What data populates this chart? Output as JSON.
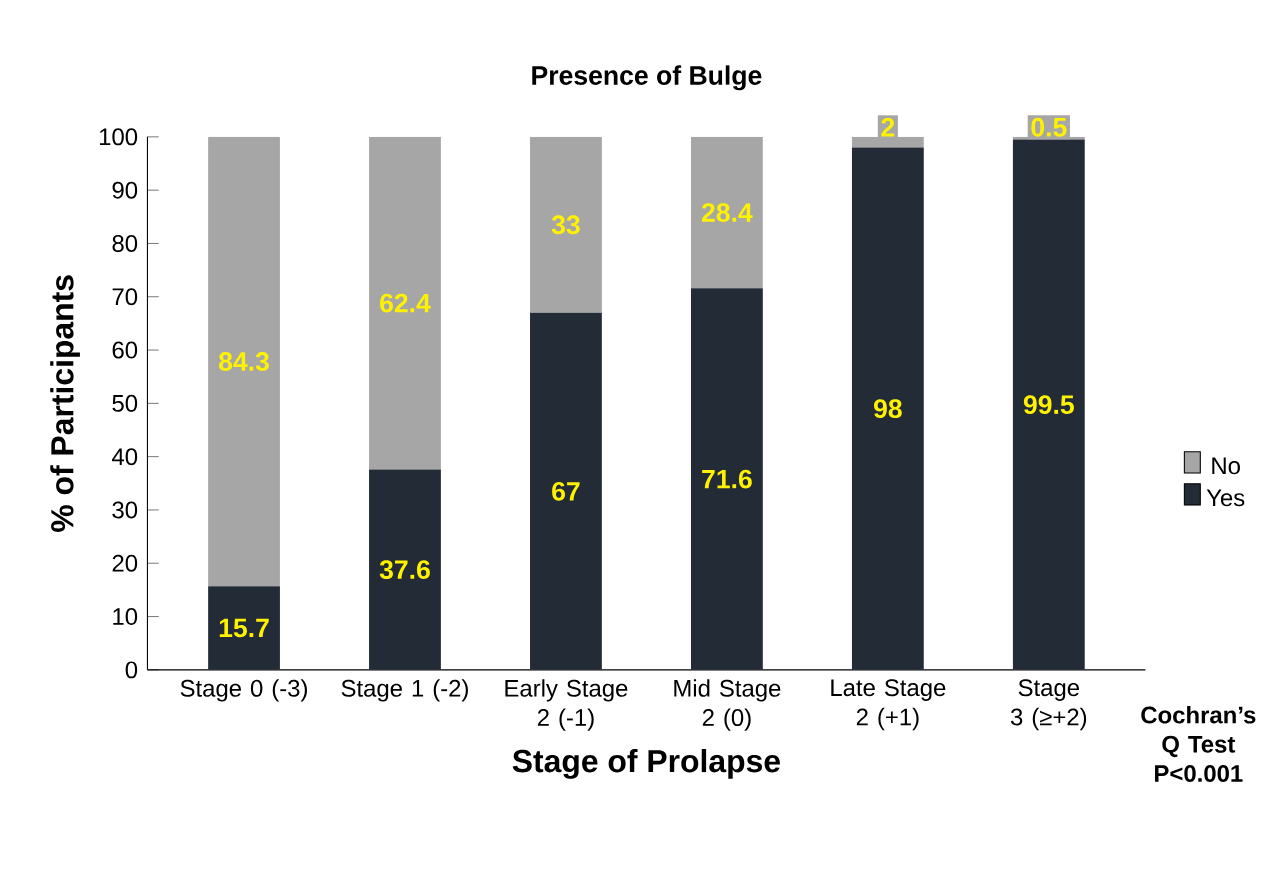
{
  "chart_data": {
    "type": "bar",
    "stacked": true,
    "title": "Presence of Bulge",
    "xlabel": "Stage of Prolapse",
    "ylabel": "% of Participants",
    "categories": [
      "Stage 0 (-3)",
      "Stage 1 (-2)",
      "Early Stage 2 (-1)",
      "Mid Stage 2 (0)",
      "Late Stage 2 (+1)",
      "Stage 3 (≥+2)"
    ],
    "series": [
      {
        "name": "Yes",
        "color": "#222b36",
        "values": [
          15.7,
          37.6,
          67,
          71.6,
          98,
          99.5
        ],
        "value_labels": [
          "15.7",
          "37.6",
          "67",
          "71.6",
          "98",
          "99.5"
        ]
      },
      {
        "name": "No",
        "color": "#a6a6a6",
        "values": [
          84.3,
          62.4,
          33,
          28.4,
          2,
          0.5
        ],
        "value_labels": [
          "84.3",
          "62.4",
          "33",
          "28.4",
          "2",
          "0.5"
        ]
      }
    ],
    "ylim": [
      0,
      100
    ],
    "yticks": [
      0,
      10,
      20,
      30,
      40,
      50,
      60,
      70,
      80,
      90,
      100
    ],
    "legend": "right",
    "grid": false,
    "annotations": [
      "Cochran’s Q Test P<0.001"
    ]
  }
}
